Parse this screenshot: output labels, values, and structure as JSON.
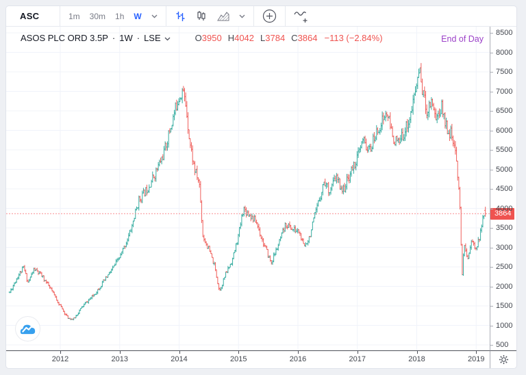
{
  "toolbar": {
    "symbol": "ASC",
    "intervals": [
      "1m",
      "30m",
      "1h"
    ],
    "active_interval": "W",
    "icons": [
      "bars-chart-icon",
      "candlestick-chart-icon",
      "area-chart-icon",
      "compare-icon",
      "indicators-icon"
    ],
    "accent_blue": "#2962ff"
  },
  "chart": {
    "header": {
      "title": "ASOS PLC ORD 3.5P",
      "separator": "·",
      "interval": "1W",
      "exchange": "LSE"
    },
    "ohlc": [
      {
        "label": "O",
        "value": "3950"
      },
      {
        "label": "H",
        "value": "4042"
      },
      {
        "label": "L",
        "value": "3784"
      },
      {
        "label": "C",
        "value": "3864"
      }
    ],
    "change": "−113 (−2.84%)",
    "end_of_day": "End of Day",
    "price_tag": "3864"
  },
  "chart_data": {
    "type": "bar",
    "subtype": "weekly-ohlc-bars",
    "symbol": "ASOS PLC ORD 3.5P",
    "interval": "1W",
    "exchange": "LSE",
    "title": "ASOS PLC ORD 3.5P · 1W · LSE",
    "y_axis": {
      "min": 500,
      "max": 8500,
      "step": 500,
      "ticks": [
        8500,
        8000,
        7500,
        7000,
        6500,
        6000,
        5500,
        5000,
        4500,
        4000,
        3500,
        3000,
        2500,
        2000,
        1500,
        1000,
        500
      ]
    },
    "x_axis": {
      "years": [
        2012,
        2013,
        2014,
        2015,
        2016,
        2017,
        2018,
        2019
      ],
      "start": 2011.15,
      "end": 2019.155
    },
    "grid": true,
    "legend_position": "top-left",
    "price_line_value": 3864,
    "last": {
      "open": 3950,
      "high": 4042,
      "low": 3784,
      "close": 3864,
      "change": -113,
      "change_pct": -2.84
    },
    "anchors": [
      [
        2011.15,
        1850
      ],
      [
        2011.28,
        2250
      ],
      [
        2011.38,
        2480
      ],
      [
        2011.46,
        2100
      ],
      [
        2011.56,
        2450
      ],
      [
        2011.7,
        2250
      ],
      [
        2011.85,
        1900
      ],
      [
        2012.0,
        1500
      ],
      [
        2012.12,
        1200
      ],
      [
        2012.22,
        1150
      ],
      [
        2012.38,
        1500
      ],
      [
        2012.55,
        1750
      ],
      [
        2012.72,
        2100
      ],
      [
        2012.88,
        2450
      ],
      [
        2013.02,
        2800
      ],
      [
        2013.18,
        3400
      ],
      [
        2013.32,
        4200
      ],
      [
        2013.46,
        4500
      ],
      [
        2013.6,
        4900
      ],
      [
        2013.74,
        5400
      ],
      [
        2013.88,
        6200
      ],
      [
        2013.98,
        6800
      ],
      [
        2014.06,
        7050
      ],
      [
        2014.12,
        6600
      ],
      [
        2014.18,
        5700
      ],
      [
        2014.26,
        5000
      ],
      [
        2014.34,
        4650
      ],
      [
        2014.4,
        3300
      ],
      [
        2014.5,
        2950
      ],
      [
        2014.6,
        2500
      ],
      [
        2014.68,
        1880
      ],
      [
        2014.78,
        2300
      ],
      [
        2014.9,
        2700
      ],
      [
        2015.0,
        3300
      ],
      [
        2015.08,
        4000
      ],
      [
        2015.18,
        3850
      ],
      [
        2015.3,
        3650
      ],
      [
        2015.42,
        3100
      ],
      [
        2015.55,
        2600
      ],
      [
        2015.68,
        3100
      ],
      [
        2015.8,
        3600
      ],
      [
        2015.92,
        3450
      ],
      [
        2016.02,
        3400
      ],
      [
        2016.1,
        3000
      ],
      [
        2016.2,
        3300
      ],
      [
        2016.32,
        4000
      ],
      [
        2016.44,
        4700
      ],
      [
        2016.54,
        4450
      ],
      [
        2016.64,
        4800
      ],
      [
        2016.76,
        4450
      ],
      [
        2016.88,
        4900
      ],
      [
        2017.0,
        5300
      ],
      [
        2017.1,
        5750
      ],
      [
        2017.2,
        5450
      ],
      [
        2017.3,
        5850
      ],
      [
        2017.42,
        6250
      ],
      [
        2017.5,
        6450
      ],
      [
        2017.6,
        5800
      ],
      [
        2017.7,
        5650
      ],
      [
        2017.8,
        6000
      ],
      [
        2017.9,
        6400
      ],
      [
        2018.0,
        7200
      ],
      [
        2018.04,
        7600
      ],
      [
        2018.1,
        7000
      ],
      [
        2018.17,
        6500
      ],
      [
        2018.25,
        6800
      ],
      [
        2018.33,
        6300
      ],
      [
        2018.42,
        6600
      ],
      [
        2018.5,
        6100
      ],
      [
        2018.58,
        5900
      ],
      [
        2018.66,
        5300
      ],
      [
        2018.72,
        4400
      ],
      [
        2018.76,
        2250
      ],
      [
        2018.8,
        3050
      ],
      [
        2018.86,
        2750
      ],
      [
        2018.92,
        3150
      ],
      [
        2018.98,
        3000
      ],
      [
        2019.04,
        3150
      ],
      [
        2019.09,
        3500
      ],
      [
        2019.135,
        3950
      ]
    ],
    "seed": 11,
    "colors": {
      "up": "#33ab9f",
      "down": "#ef5f5b",
      "grid": "#f0f3fa",
      "price_line": "#f98b90",
      "price_tag_bg": "#ef5350",
      "axis_text": "#42464e",
      "end_of_day": "#9b40c8"
    }
  }
}
